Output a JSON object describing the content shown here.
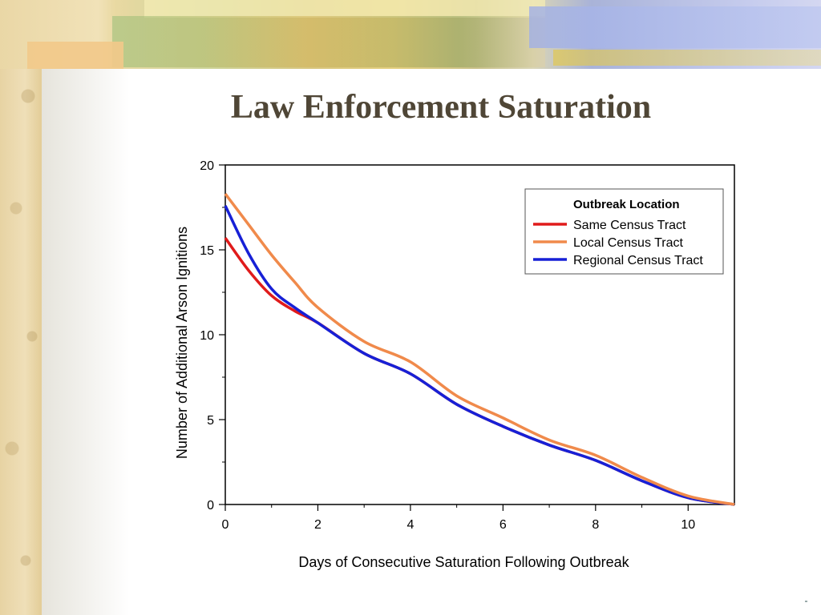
{
  "slide": {
    "title": "Law Enforcement Saturation"
  },
  "chart_data": {
    "type": "line",
    "title": "",
    "xlabel": "Days of Consecutive Saturation Following Outbreak",
    "ylabel": "Number of Additional Arson Ignitions",
    "xlim": [
      0,
      11
    ],
    "ylim": [
      0,
      20
    ],
    "xticks": [
      0,
      2,
      4,
      6,
      8,
      10
    ],
    "yticks": [
      0,
      5,
      10,
      15,
      20
    ],
    "grid": false,
    "legend": {
      "title": "Outbreak Location",
      "placement": "top-right"
    },
    "series": [
      {
        "name": "Same Census Tract",
        "color": "#e01b1b",
        "x": [
          0,
          0.5,
          1,
          1.5,
          2,
          3,
          4,
          5,
          6,
          7,
          8,
          9,
          10,
          11
        ],
        "y": [
          15.7,
          13.8,
          12.3,
          11.4,
          10.7,
          8.9,
          7.7,
          5.9,
          4.6,
          3.5,
          2.6,
          1.4,
          0.4,
          0
        ]
      },
      {
        "name": "Local Census Tract",
        "color": "#f08a4b",
        "x": [
          0,
          0.5,
          1,
          1.5,
          2,
          3,
          4,
          5,
          6,
          7,
          8,
          9,
          10,
          11
        ],
        "y": [
          18.3,
          16.5,
          14.7,
          13.1,
          11.6,
          9.6,
          8.4,
          6.4,
          5.1,
          3.8,
          2.9,
          1.6,
          0.5,
          0
        ]
      },
      {
        "name": "Regional Census Tract",
        "color": "#1720d6",
        "x": [
          0,
          0.5,
          1,
          1.5,
          2,
          3,
          4,
          5,
          6,
          7,
          8,
          9,
          10,
          11
        ],
        "y": [
          17.6,
          14.8,
          12.7,
          11.6,
          10.7,
          8.9,
          7.7,
          5.9,
          4.6,
          3.5,
          2.6,
          1.4,
          0.4,
          0
        ]
      }
    ]
  },
  "colors": {
    "title": "#4f4636",
    "axis": "#000000"
  }
}
